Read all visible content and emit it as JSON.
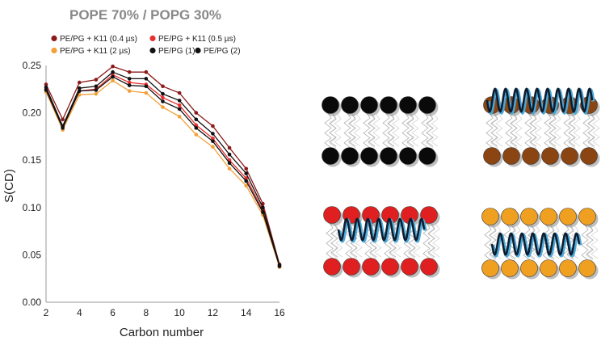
{
  "chart_data": {
    "type": "line",
    "title": "POPE 70% / POPG 30%",
    "xlabel": "Carbon number",
    "ylabel": "S(CD)",
    "x": [
      2,
      3,
      4,
      5,
      6,
      7,
      8,
      9,
      10,
      11,
      12,
      13,
      14,
      15,
      16
    ],
    "xlim": [
      2,
      16
    ],
    "xticks": [
      2,
      4,
      6,
      8,
      10,
      12,
      14,
      16
    ],
    "ylim": [
      0,
      0.25
    ],
    "yticks": [
      "0.00",
      "0.05",
      "0.10",
      "0.15",
      "0.20",
      "0.25"
    ],
    "grid": "none",
    "legend_position": "top-left",
    "series": [
      {
        "name": "PE/PG + K11 (0.4 µs)",
        "color": "#8b1a1a",
        "values": [
          0.23,
          0.193,
          0.232,
          0.235,
          0.249,
          0.243,
          0.243,
          0.228,
          0.221,
          0.2,
          0.186,
          0.163,
          0.141,
          0.104,
          0.04
        ]
      },
      {
        "name": "PE/PG + K11 (0.5 µs)",
        "color": "#e8302f",
        "values": [
          0.225,
          0.185,
          0.223,
          0.225,
          0.24,
          0.232,
          0.23,
          0.216,
          0.208,
          0.187,
          0.173,
          0.15,
          0.131,
          0.097,
          0.038
        ]
      },
      {
        "name": "PE/PG + K11 (2 µs)",
        "color": "#f2a13a",
        "values": [
          0.222,
          0.182,
          0.219,
          0.22,
          0.234,
          0.223,
          0.221,
          0.206,
          0.196,
          0.177,
          0.164,
          0.141,
          0.123,
          0.092,
          0.037
        ]
      },
      {
        "name": "PE/PG (1)",
        "color": "#111111",
        "values": [
          0.227,
          0.186,
          0.226,
          0.228,
          0.243,
          0.236,
          0.236,
          0.22,
          0.213,
          0.193,
          0.178,
          0.156,
          0.136,
          0.1,
          0.039
        ]
      },
      {
        "name": "PE/PG (2)",
        "color": "#111111",
        "values": [
          0.224,
          0.184,
          0.223,
          0.224,
          0.238,
          0.229,
          0.228,
          0.212,
          0.204,
          0.184,
          0.17,
          0.147,
          0.128,
          0.095,
          0.038
        ]
      }
    ]
  },
  "schematic": {
    "panels": [
      {
        "headgroup_color": "#0a0a0a",
        "peptide": "none"
      },
      {
        "headgroup_color": "#8a4513",
        "peptide": "top-surface"
      },
      {
        "headgroup_color": "#e02020",
        "peptide": "upper-interior"
      },
      {
        "headgroup_color": "#f0a020",
        "peptide": "lower-interior"
      }
    ],
    "peptide_color": "#0f1d2e",
    "peptide_highlight": "#4aa8d8"
  }
}
